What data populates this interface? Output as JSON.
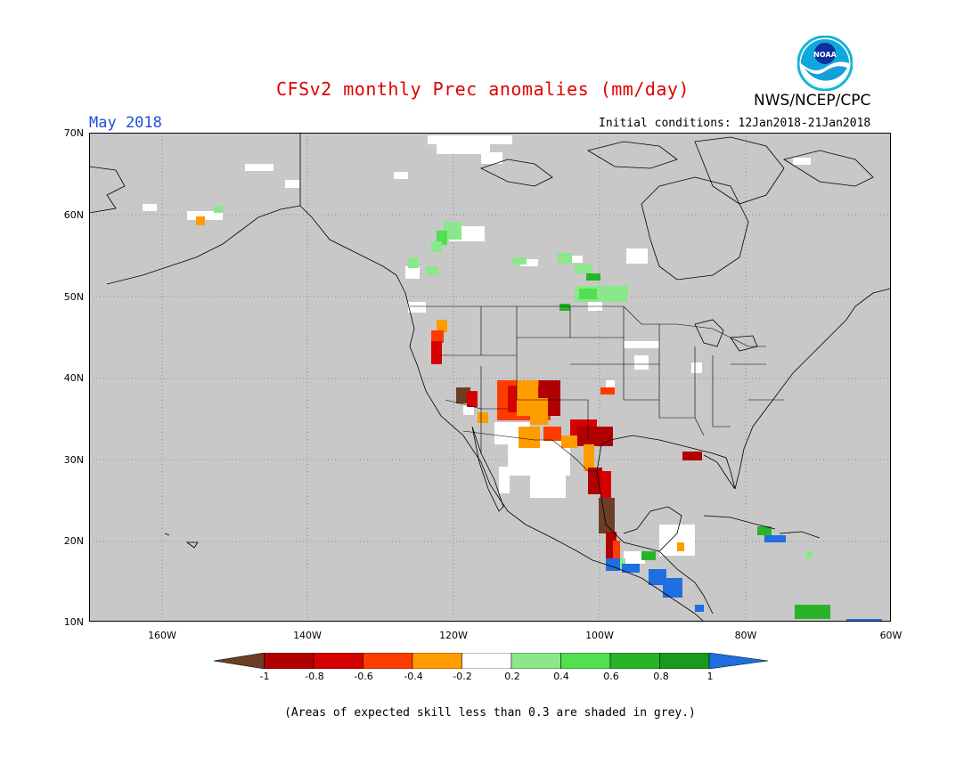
{
  "title": "CFSv2 monthly Prec anomalies (mm/day)",
  "organization": "NWS/NCEP/CPC",
  "logo_text": "NOAA",
  "target_month": "May 2018",
  "initial_conditions": "Initial conditions: 12Jan2018-21Jan2018",
  "footnote": "(Areas of expected skill less than 0.3 are shaded in grey.)",
  "lat_labels": [
    "70N",
    "60N",
    "50N",
    "40N",
    "30N",
    "20N",
    "10N"
  ],
  "lon_labels": [
    "160W",
    "140W",
    "120W",
    "100W",
    "80W",
    "60W"
  ],
  "colorbar": {
    "ticks": [
      "-1",
      "-0.8",
      "-0.6",
      "-0.4",
      "-0.2",
      "0.2",
      "0.4",
      "0.6",
      "0.8",
      "1"
    ],
    "colors": [
      "#6b3e26",
      "#b00000",
      "#d60000",
      "#ff3c00",
      "#ff9c00",
      "#ffffff",
      "#8ae88a",
      "#50e050",
      "#28b428",
      "#1a9a1a",
      "#1f6fe0"
    ]
  },
  "colors": {
    "grey_mask": "#c8c8c8",
    "title_red": "#e00000",
    "month_blue": "#1f4fd8"
  }
}
